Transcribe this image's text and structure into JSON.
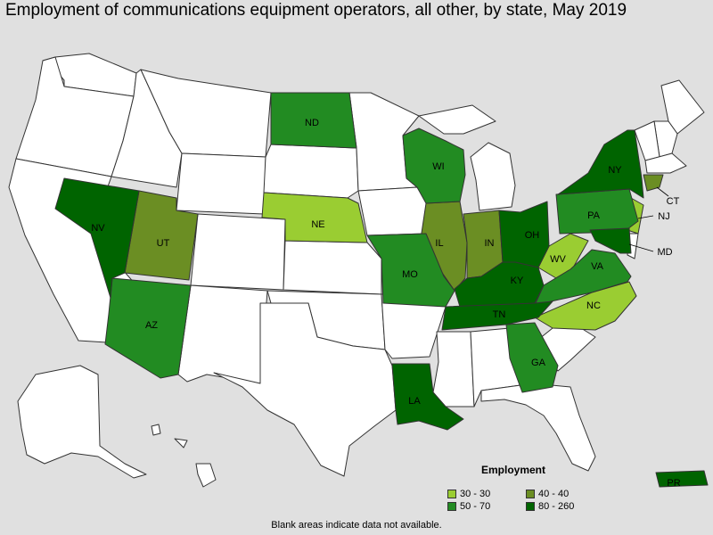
{
  "title": "Employment of communications equipment operators, all other, by state, May 2019",
  "footnote": "Blank areas indicate data not available.",
  "colors": {
    "background": "#e0e0e0",
    "no_data": "#ffffff",
    "border": "#333333",
    "range_30_30": "#9acd32",
    "range_40_40": "#6b8e23",
    "range_50_70": "#228b22",
    "range_80_260": "#006400"
  },
  "legend": {
    "title": "Employment",
    "items": [
      {
        "label": "30 - 30",
        "color": "#9acd32"
      },
      {
        "label": "40 - 40",
        "color": "#6b8e23"
      },
      {
        "label": "50 - 70",
        "color": "#228b22"
      },
      {
        "label": "80 - 260",
        "color": "#006400"
      }
    ]
  },
  "states": [
    {
      "abbr": "ND",
      "range": "50 - 70"
    },
    {
      "abbr": "NE",
      "range": "30 - 30"
    },
    {
      "abbr": "WI",
      "range": "50 - 70"
    },
    {
      "abbr": "NY",
      "range": "80 - 260"
    },
    {
      "abbr": "CT",
      "range": "40 - 40"
    },
    {
      "abbr": "NJ",
      "range": "30 - 30"
    },
    {
      "abbr": "PA",
      "range": "50 - 70"
    },
    {
      "abbr": "NV",
      "range": "80 - 260"
    },
    {
      "abbr": "UT",
      "range": "40 - 40"
    },
    {
      "abbr": "IL",
      "range": "40 - 40"
    },
    {
      "abbr": "IN",
      "range": "40 - 40"
    },
    {
      "abbr": "OH",
      "range": "80 - 260"
    },
    {
      "abbr": "MD",
      "range": "80 - 260"
    },
    {
      "abbr": "WV",
      "range": "30 - 30"
    },
    {
      "abbr": "VA",
      "range": "50 - 70"
    },
    {
      "abbr": "MO",
      "range": "50 - 70"
    },
    {
      "abbr": "KY",
      "range": "80 - 260"
    },
    {
      "abbr": "NC",
      "range": "30 - 30"
    },
    {
      "abbr": "TN",
      "range": "80 - 260"
    },
    {
      "abbr": "AZ",
      "range": "50 - 70"
    },
    {
      "abbr": "GA",
      "range": "50 - 70"
    },
    {
      "abbr": "LA",
      "range": "80 - 260"
    },
    {
      "abbr": "PR",
      "range": "80 - 260"
    }
  ]
}
